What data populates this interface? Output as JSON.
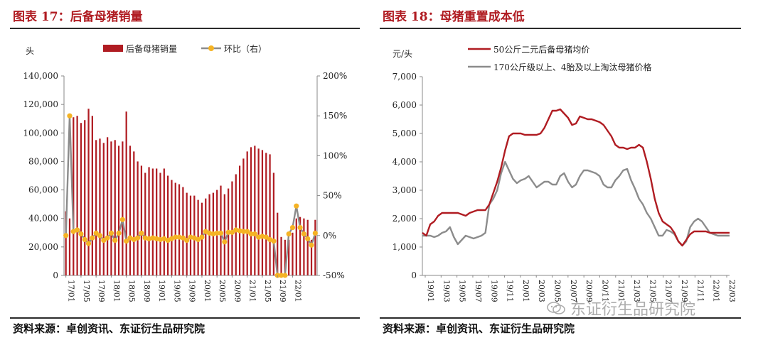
{
  "left_panel": {
    "title": "图表 17：后备母猪销量",
    "source": "资料来源：卓创资讯、东证衍生品研究院"
  },
  "right_panel": {
    "title": "图表 18：母猪重置成本低",
    "source": "资料来源：卓创资讯、东证衍生品研究院"
  },
  "watermark": {
    "text": "东证衍生品研究院"
  },
  "colors": {
    "red": "#b01c22",
    "gold": "#f5b324",
    "gray": "#8c8c8c",
    "title_red": "#b01c22"
  },
  "chart_data": [
    {
      "type": "bar+line",
      "unit_left": "头",
      "legend_position": "top",
      "series": [
        {
          "name": "后备母猪销量",
          "kind": "bar",
          "axis": "left",
          "values": [
            45000,
            40000,
            111000,
            112000,
            107000,
            109000,
            117000,
            112000,
            95000,
            96000,
            93000,
            97000,
            94000,
            95000,
            91000,
            94000,
            115000,
            91000,
            87000,
            80000,
            77000,
            72000,
            76000,
            75000,
            75000,
            72000,
            75000,
            70000,
            67000,
            65000,
            64000,
            62000,
            58000,
            56000,
            56000,
            53000,
            51000,
            54000,
            57000,
            58000,
            60000,
            63000,
            57000,
            61000,
            66000,
            71000,
            77000,
            82000,
            87000,
            90000,
            91000,
            89000,
            88000,
            86000,
            85000,
            72000,
            44000,
            27000,
            25000,
            25000,
            30000,
            40000,
            41000,
            40000,
            39000,
            25000,
            39000
          ]
        },
        {
          "name": "环比（右）",
          "kind": "line",
          "axis": "right",
          "values": [
            0,
            150,
            5,
            7,
            2,
            -5,
            -10,
            -3,
            3,
            0,
            -6,
            -3,
            3,
            -6,
            3,
            20,
            -7,
            -3,
            -5,
            -3,
            3,
            -3,
            -4,
            -3,
            -4,
            -5,
            -4,
            -6,
            -4,
            -2,
            -2,
            -3,
            -6,
            -2,
            -3,
            -5,
            -2,
            5,
            3,
            2,
            3,
            3,
            -8,
            4,
            4,
            7,
            6,
            5,
            5,
            2,
            2,
            -2,
            -1,
            -2,
            -5,
            -7,
            -50,
            -50,
            -50,
            2,
            10,
            37,
            10,
            2,
            -4,
            -12,
            3
          ]
        }
      ],
      "x_labels": [
        "17/01",
        "17/05",
        "17/09",
        "18/01",
        "18/05",
        "18/09",
        "19/01",
        "19/05",
        "19/09",
        "20/01",
        "20/05",
        "20/09",
        "21/01",
        "21/05",
        "21/09",
        "22/01"
      ],
      "y_left": {
        "min": 0,
        "max": 140000,
        "ticks": [
          "0",
          "20,000",
          "40,000",
          "60,000",
          "80,000",
          "100,000",
          "120,000",
          "140,000"
        ]
      },
      "y_right": {
        "min": -50,
        "max": 200,
        "ticks": [
          "-50%",
          "0%",
          "50%",
          "100%",
          "150%",
          "200%"
        ]
      }
    },
    {
      "type": "line",
      "unit_left": "元/头",
      "legend_position": "top-left",
      "series": [
        {
          "name": "50公斤二元后备母猪均价",
          "color": "red",
          "values": [
            1500,
            1400,
            1800,
            1900,
            2100,
            2200,
            2200,
            2200,
            2200,
            2200,
            2150,
            2100,
            2200,
            2250,
            2300,
            2300,
            2300,
            2500,
            2900,
            3300,
            3800,
            4400,
            4900,
            5000,
            5000,
            5000,
            4950,
            4950,
            4950,
            4950,
            5000,
            5200,
            5500,
            5800,
            5800,
            5850,
            5700,
            5550,
            5300,
            5350,
            5600,
            5550,
            5500,
            5500,
            5450,
            5400,
            5300,
            5100,
            4900,
            4600,
            4500,
            4500,
            4450,
            4500,
            4500,
            4600,
            4500,
            4000,
            3400,
            2700,
            2200,
            1900,
            1800,
            1700,
            1500,
            1200,
            1050,
            1250,
            1450,
            1550,
            1550,
            1550,
            1550,
            1500,
            1500,
            1500,
            1500,
            1500,
            1500
          ]
        },
        {
          "name": "170公斤级以上、4胎及以上淘汰母猪价格",
          "color": "gray",
          "values": [
            1400,
            1400,
            1400,
            1350,
            1400,
            1500,
            1550,
            1700,
            1350,
            1100,
            1250,
            1400,
            1350,
            1300,
            1350,
            1400,
            1500,
            2500,
            2700,
            3000,
            3600,
            4000,
            3700,
            3400,
            3250,
            3350,
            3400,
            3500,
            3300,
            3100,
            3200,
            3300,
            3300,
            3200,
            3200,
            3500,
            3600,
            3300,
            3100,
            3200,
            3500,
            3700,
            3700,
            3650,
            3600,
            3500,
            3200,
            3100,
            3100,
            3350,
            3500,
            3700,
            3750,
            3350,
            3050,
            2700,
            2500,
            2200,
            2000,
            1700,
            1400,
            1400,
            1600,
            1550,
            1450,
            1200,
            1050,
            1200,
            1700,
            1900,
            2000,
            1900,
            1700,
            1500,
            1450,
            1400,
            1400,
            1400,
            1400
          ]
        }
      ],
      "x_labels": [
        "19/01",
        "19/03",
        "19/05",
        "19/07",
        "19/09",
        "19/11",
        "20/01",
        "20/03",
        "20/05",
        "20/07",
        "20/09",
        "20/11",
        "21/01",
        "21/03",
        "21/05",
        "21/07",
        "21/09",
        "21/11",
        "22/01",
        "22/03"
      ],
      "y": {
        "min": 0,
        "max": 7000,
        "ticks": [
          "0",
          "1,000",
          "2,000",
          "3,000",
          "4,000",
          "5,000",
          "6,000",
          "7,000"
        ]
      }
    }
  ]
}
